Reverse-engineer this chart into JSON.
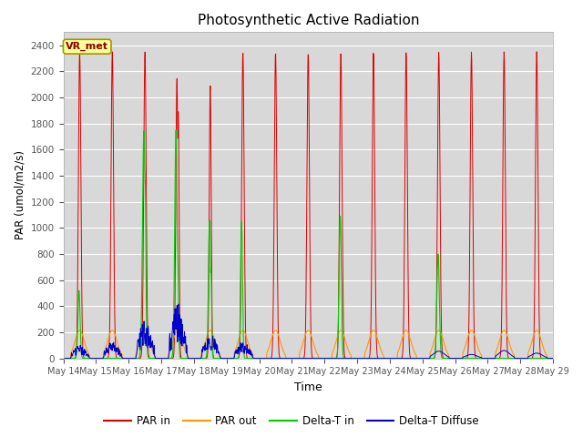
{
  "title": "Photosynthetic Active Radiation",
  "ylabel": "PAR (umol/m2/s)",
  "xlabel": "Time",
  "ylim": [
    0,
    2500
  ],
  "plot_bg": "#d8d8d8",
  "fig_bg": "#ffffff",
  "legend_labels": [
    "PAR in",
    "PAR out",
    "Delta-T in",
    "Delta-T Diffuse"
  ],
  "legend_colors": [
    "#dd0000",
    "#ff9900",
    "#00cc00",
    "#0000cc"
  ],
  "annotation_text": "VR_met",
  "annotation_bg": "#ffff99",
  "annotation_border": "#999900",
  "annotation_text_color": "#880000",
  "x_tick_labels": [
    "May 14",
    "May 15",
    "May 16",
    "May 17",
    "May 18",
    "May 19",
    "May 20",
    "May 21",
    "May 22",
    "May 23",
    "May 24",
    "May 25",
    "May 26",
    "May 27",
    "May 28",
    "May 29"
  ],
  "num_days": 15,
  "yticks": [
    0,
    200,
    400,
    600,
    800,
    1000,
    1200,
    1400,
    1600,
    1800,
    2000,
    2200,
    2400
  ]
}
